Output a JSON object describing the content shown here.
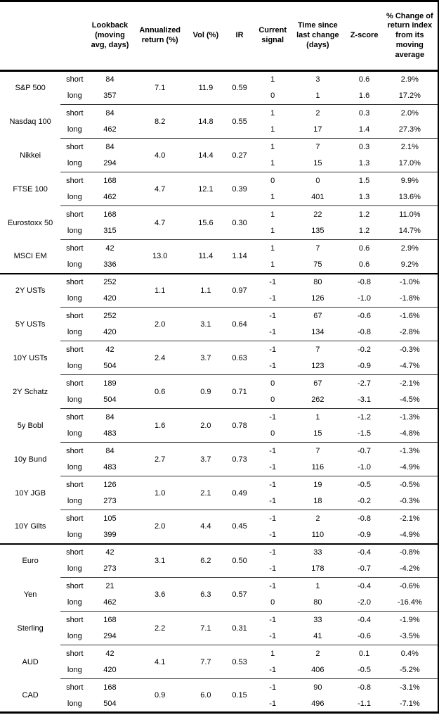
{
  "table": {
    "headers": {
      "lookback": "Lookback (moving avg, days)",
      "annualized_return": "Annualized return (%)",
      "vol": "Vol (%)",
      "ir": "IR",
      "current_signal": "Current signal",
      "time_since": "Time since last change (days)",
      "z_score": "Z-score",
      "pct_change": "% Change of return index from its moving average"
    },
    "sections": [
      {
        "groups": [
          {
            "asset": "S&P 500",
            "annualized_return": "7.1",
            "vol": "11.9",
            "ir": "0.59",
            "rows": [
              {
                "horizon": "short",
                "lookback": "84",
                "signal": "1",
                "time_since": "3",
                "z_score": "0.6",
                "pct_change": "2.9%"
              },
              {
                "horizon": "long",
                "lookback": "357",
                "signal": "0",
                "time_since": "1",
                "z_score": "1.6",
                "pct_change": "17.2%"
              }
            ]
          },
          {
            "asset": "Nasdaq 100",
            "annualized_return": "8.2",
            "vol": "14.8",
            "ir": "0.55",
            "rows": [
              {
                "horizon": "short",
                "lookback": "84",
                "signal": "1",
                "time_since": "2",
                "z_score": "0.3",
                "pct_change": "2.0%"
              },
              {
                "horizon": "long",
                "lookback": "462",
                "signal": "1",
                "time_since": "17",
                "z_score": "1.4",
                "pct_change": "27.3%"
              }
            ]
          },
          {
            "asset": "Nikkei",
            "annualized_return": "4.0",
            "vol": "14.4",
            "ir": "0.27",
            "rows": [
              {
                "horizon": "short",
                "lookback": "84",
                "signal": "1",
                "time_since": "7",
                "z_score": "0.3",
                "pct_change": "2.1%"
              },
              {
                "horizon": "long",
                "lookback": "294",
                "signal": "1",
                "time_since": "15",
                "z_score": "1.3",
                "pct_change": "17.0%"
              }
            ]
          },
          {
            "asset": "FTSE 100",
            "annualized_return": "4.7",
            "vol": "12.1",
            "ir": "0.39",
            "rows": [
              {
                "horizon": "short",
                "lookback": "168",
                "signal": "0",
                "time_since": "0",
                "z_score": "1.5",
                "pct_change": "9.9%"
              },
              {
                "horizon": "long",
                "lookback": "462",
                "signal": "1",
                "time_since": "401",
                "z_score": "1.3",
                "pct_change": "13.6%"
              }
            ]
          },
          {
            "asset": "Eurostoxx 50",
            "annualized_return": "4.7",
            "vol": "15.6",
            "ir": "0.30",
            "rows": [
              {
                "horizon": "short",
                "lookback": "168",
                "signal": "1",
                "time_since": "22",
                "z_score": "1.2",
                "pct_change": "11.0%"
              },
              {
                "horizon": "long",
                "lookback": "315",
                "signal": "1",
                "time_since": "135",
                "z_score": "1.2",
                "pct_change": "14.7%"
              }
            ]
          },
          {
            "asset": "MSCI EM",
            "annualized_return": "13.0",
            "vol": "11.4",
            "ir": "1.14",
            "rows": [
              {
                "horizon": "short",
                "lookback": "42",
                "signal": "1",
                "time_since": "7",
                "z_score": "0.6",
                "pct_change": "2.9%"
              },
              {
                "horizon": "long",
                "lookback": "336",
                "signal": "1",
                "time_since": "75",
                "z_score": "0.6",
                "pct_change": "9.2%"
              }
            ]
          }
        ]
      },
      {
        "groups": [
          {
            "asset": "2Y USTs",
            "annualized_return": "1.1",
            "vol": "1.1",
            "ir": "0.97",
            "rows": [
              {
                "horizon": "short",
                "lookback": "252",
                "signal": "-1",
                "time_since": "80",
                "z_score": "-0.8",
                "pct_change": "-1.0%"
              },
              {
                "horizon": "long",
                "lookback": "420",
                "signal": "-1",
                "time_since": "126",
                "z_score": "-1.0",
                "pct_change": "-1.8%"
              }
            ]
          },
          {
            "asset": "5Y USTs",
            "annualized_return": "2.0",
            "vol": "3.1",
            "ir": "0.64",
            "rows": [
              {
                "horizon": "short",
                "lookback": "252",
                "signal": "-1",
                "time_since": "67",
                "z_score": "-0.6",
                "pct_change": "-1.6%"
              },
              {
                "horizon": "long",
                "lookback": "420",
                "signal": "-1",
                "time_since": "134",
                "z_score": "-0.8",
                "pct_change": "-2.8%"
              }
            ]
          },
          {
            "asset": "10Y USTs",
            "annualized_return": "2.4",
            "vol": "3.7",
            "ir": "0.63",
            "rows": [
              {
                "horizon": "short",
                "lookback": "42",
                "signal": "-1",
                "time_since": "7",
                "z_score": "-0.2",
                "pct_change": "-0.3%"
              },
              {
                "horizon": "long",
                "lookback": "504",
                "signal": "-1",
                "time_since": "123",
                "z_score": "-0.9",
                "pct_change": "-4.7%"
              }
            ]
          },
          {
            "asset": "2Y Schatz",
            "annualized_return": "0.6",
            "vol": "0.9",
            "ir": "0.71",
            "rows": [
              {
                "horizon": "short",
                "lookback": "189",
                "signal": "0",
                "time_since": "67",
                "z_score": "-2.7",
                "pct_change": "-2.1%"
              },
              {
                "horizon": "long",
                "lookback": "504",
                "signal": "0",
                "time_since": "262",
                "z_score": "-3.1",
                "pct_change": "-4.5%"
              }
            ]
          },
          {
            "asset": "5y Bobl",
            "annualized_return": "1.6",
            "vol": "2.0",
            "ir": "0.78",
            "rows": [
              {
                "horizon": "short",
                "lookback": "84",
                "signal": "-1",
                "time_since": "1",
                "z_score": "-1.2",
                "pct_change": "-1.3%"
              },
              {
                "horizon": "long",
                "lookback": "483",
                "signal": "0",
                "time_since": "15",
                "z_score": "-1.5",
                "pct_change": "-4.8%"
              }
            ]
          },
          {
            "asset": "10y Bund",
            "annualized_return": "2.7",
            "vol": "3.7",
            "ir": "0.73",
            "rows": [
              {
                "horizon": "short",
                "lookback": "84",
                "signal": "-1",
                "time_since": "7",
                "z_score": "-0.7",
                "pct_change": "-1.3%"
              },
              {
                "horizon": "long",
                "lookback": "483",
                "signal": "-1",
                "time_since": "116",
                "z_score": "-1.0",
                "pct_change": "-4.9%"
              }
            ]
          },
          {
            "asset": "10Y JGB",
            "annualized_return": "1.0",
            "vol": "2.1",
            "ir": "0.49",
            "rows": [
              {
                "horizon": "short",
                "lookback": "126",
                "signal": "-1",
                "time_since": "19",
                "z_score": "-0.5",
                "pct_change": "-0.5%"
              },
              {
                "horizon": "long",
                "lookback": "273",
                "signal": "-1",
                "time_since": "18",
                "z_score": "-0.2",
                "pct_change": "-0.3%"
              }
            ]
          },
          {
            "asset": "10Y Gilts",
            "annualized_return": "2.0",
            "vol": "4.4",
            "ir": "0.45",
            "rows": [
              {
                "horizon": "short",
                "lookback": "105",
                "signal": "-1",
                "time_since": "2",
                "z_score": "-0.8",
                "pct_change": "-2.1%"
              },
              {
                "horizon": "long",
                "lookback": "399",
                "signal": "-1",
                "time_since": "110",
                "z_score": "-0.9",
                "pct_change": "-4.9%"
              }
            ]
          }
        ]
      },
      {
        "groups": [
          {
            "asset": "Euro",
            "annualized_return": "3.1",
            "vol": "6.2",
            "ir": "0.50",
            "rows": [
              {
                "horizon": "short",
                "lookback": "42",
                "signal": "-1",
                "time_since": "33",
                "z_score": "-0.4",
                "pct_change": "-0.8%"
              },
              {
                "horizon": "long",
                "lookback": "273",
                "signal": "-1",
                "time_since": "178",
                "z_score": "-0.7",
                "pct_change": "-4.2%"
              }
            ]
          },
          {
            "asset": "Yen",
            "annualized_return": "3.6",
            "vol": "6.3",
            "ir": "0.57",
            "rows": [
              {
                "horizon": "short",
                "lookback": "21",
                "signal": "-1",
                "time_since": "1",
                "z_score": "-0.4",
                "pct_change": "-0.6%"
              },
              {
                "horizon": "long",
                "lookback": "462",
                "signal": "0",
                "time_since": "80",
                "z_score": "-2.0",
                "pct_change": "-16.4%"
              }
            ]
          },
          {
            "asset": "Sterling",
            "annualized_return": "2.2",
            "vol": "7.1",
            "ir": "0.31",
            "rows": [
              {
                "horizon": "short",
                "lookback": "168",
                "signal": "-1",
                "time_since": "33",
                "z_score": "-0.4",
                "pct_change": "-1.9%"
              },
              {
                "horizon": "long",
                "lookback": "294",
                "signal": "-1",
                "time_since": "41",
                "z_score": "-0.6",
                "pct_change": "-3.5%"
              }
            ]
          },
          {
            "asset": "AUD",
            "annualized_return": "4.1",
            "vol": "7.7",
            "ir": "0.53",
            "rows": [
              {
                "horizon": "short",
                "lookback": "42",
                "signal": "1",
                "time_since": "2",
                "z_score": "0.1",
                "pct_change": "0.4%"
              },
              {
                "horizon": "long",
                "lookback": "420",
                "signal": "-1",
                "time_since": "406",
                "z_score": "-0.5",
                "pct_change": "-5.2%"
              }
            ]
          },
          {
            "asset": "CAD",
            "annualized_return": "0.9",
            "vol": "6.0",
            "ir": "0.15",
            "rows": [
              {
                "horizon": "short",
                "lookback": "168",
                "signal": "-1",
                "time_since": "90",
                "z_score": "-0.8",
                "pct_change": "-3.1%"
              },
              {
                "horizon": "long",
                "lookback": "504",
                "signal": "-1",
                "time_since": "496",
                "z_score": "-1.1",
                "pct_change": "-7.1%"
              }
            ]
          }
        ]
      }
    ]
  }
}
